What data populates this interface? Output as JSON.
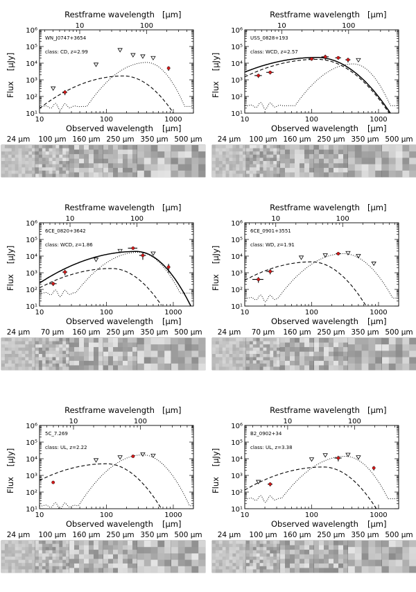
{
  "figure": {
    "xlabel": "Observed wavelength",
    "top_label": "Restframe wavelength",
    "ylabel": "Flux",
    "unit": "[μm]",
    "yunit": "[μJy]"
  },
  "chart_data": [
    {
      "type": "scatter",
      "source": "WN_J0747+3654",
      "class_label": "class: CD, z=2.99",
      "z": 2.99,
      "xlim": [
        10,
        2000
      ],
      "ylim": [
        10,
        1000000
      ],
      "top_ticks": [
        "10",
        "100"
      ],
      "x_ticks": [
        "10",
        "100",
        "1000"
      ],
      "y_ticks": [
        "10¹",
        "10²",
        "10³",
        "10⁴",
        "10⁵",
        "10⁶"
      ],
      "detections": [
        {
          "x": 24,
          "y": 180,
          "xerr": 2,
          "yerr": 60
        },
        {
          "x": 850,
          "y": 5000,
          "xerr": 0,
          "yerr": 1500
        }
      ],
      "upper_limits": [
        {
          "x": 16,
          "y": 300
        },
        {
          "x": 70,
          "y": 8000
        },
        {
          "x": 160,
          "y": 60000
        },
        {
          "x": 250,
          "y": 30000
        },
        {
          "x": 350,
          "y": 25000
        },
        {
          "x": 500,
          "y": 20000
        }
      ],
      "series": [
        {
          "name": "AGN",
          "style": "dashed",
          "peak_x": 180,
          "peak_y": 1700,
          "w1": 0.9,
          "w2": 0.5
        },
        {
          "name": "starburst",
          "style": "dotted",
          "peak_x": 400,
          "peak_y": 11000,
          "w1": 0.55,
          "w2": 0.35,
          "floor_to": 25
        }
      ],
      "cutouts": [
        "24 μm",
        "100 μm",
        "160 μm",
        "250 μm",
        "350 μm",
        "500 μm"
      ]
    },
    {
      "type": "scatter",
      "source": "USS_0828+193",
      "class_label": "class: WCD, z=2.57",
      "z": 2.57,
      "xlim": [
        10,
        2000
      ],
      "ylim": [
        10,
        1000000
      ],
      "top_ticks": [
        "10",
        "100"
      ],
      "x_ticks": [
        "10",
        "100",
        "1000"
      ],
      "y_ticks": [
        "10¹",
        "10²",
        "10³",
        "10⁴",
        "10⁵",
        "10⁶"
      ],
      "detections": [
        {
          "x": 16,
          "y": 1800,
          "xerr": 2,
          "yerr": 500
        },
        {
          "x": 24,
          "y": 2800,
          "xerr": 3,
          "yerr": 700
        },
        {
          "x": 100,
          "y": 18000,
          "xerr": 10,
          "yerr": 4000
        },
        {
          "x": 160,
          "y": 24000,
          "xerr": 20,
          "yerr": 8000
        },
        {
          "x": 250,
          "y": 21000,
          "xerr": 25,
          "yerr": 5000
        },
        {
          "x": 350,
          "y": 16000,
          "xerr": 30,
          "yerr": 5000
        }
      ],
      "upper_limits": [
        {
          "x": 500,
          "y": 15000
        }
      ],
      "series": [
        {
          "name": "total",
          "style": "solid",
          "peak_x": 120,
          "peak_y": 22000,
          "w1": 1.15,
          "w2": 0.6
        },
        {
          "name": "AGN",
          "style": "dashed",
          "peak_x": 120,
          "peak_y": 17000,
          "w1": 1.05,
          "w2": 0.6
        },
        {
          "name": "starburst",
          "style": "dotted",
          "peak_x": 420,
          "peak_y": 9000,
          "w1": 0.55,
          "w2": 0.35,
          "floor_to": 28
        }
      ],
      "cutouts": [
        "24 μm",
        "100 μm",
        "160 μm",
        "250 μm",
        "350 μm",
        "500 μm"
      ]
    },
    {
      "type": "scatter",
      "source": "6CE_0820+3642",
      "class_label": "class: WCD, z=1.86",
      "z": 1.86,
      "xlim": [
        10,
        2000
      ],
      "ylim": [
        10,
        1000000
      ],
      "top_ticks": [
        "10",
        "100"
      ],
      "x_ticks": [
        "10",
        "100",
        "1000"
      ],
      "y_ticks": [
        "10¹",
        "10²",
        "10³",
        "10⁴",
        "10⁵",
        "10⁶"
      ],
      "detections": [
        {
          "x": 16,
          "y": 220,
          "xerr": 2,
          "yerr": 60
        },
        {
          "x": 24,
          "y": 1100,
          "xerr": 2,
          "yerr": 400
        },
        {
          "x": 250,
          "y": 30000,
          "xerr": 40,
          "yerr": 6000
        },
        {
          "x": 350,
          "y": 11000,
          "xerr": 40,
          "yerr": 5000
        },
        {
          "x": 850,
          "y": 2200,
          "xerr": 0,
          "yerr": 1200
        }
      ],
      "upper_limits": [
        {
          "x": 70,
          "y": 6000
        },
        {
          "x": 160,
          "y": 20000
        },
        {
          "x": 500,
          "y": 14000
        }
      ],
      "series": [
        {
          "name": "total",
          "style": "solid",
          "peak_x": 280,
          "peak_y": 19000,
          "w1": 1.05,
          "w2": 0.45
        },
        {
          "name": "AGN",
          "style": "dashed",
          "peak_x": 120,
          "peak_y": 1800,
          "w1": 1.0,
          "w2": 0.5
        },
        {
          "name": "starburst",
          "style": "dotted",
          "peak_x": 300,
          "peak_y": 17000,
          "w1": 0.6,
          "w2": 0.4,
          "floor_to": 60
        }
      ],
      "cutouts": [
        "24 μm",
        "70 μm",
        "160 μm",
        "250 μm",
        "350 μm",
        "500 μm"
      ]
    },
    {
      "type": "scatter",
      "source": "6CE_0901+3551",
      "class_label": "class: WD, z=1.91",
      "z": 1.91,
      "xlim": [
        10,
        2000
      ],
      "ylim": [
        10,
        1000000
      ],
      "top_ticks": [
        "10",
        "100"
      ],
      "x_ticks": [
        "10",
        "100",
        "1000"
      ],
      "y_ticks": [
        "10¹",
        "10²",
        "10³",
        "10⁴",
        "10⁵",
        "10⁶"
      ],
      "detections": [
        {
          "x": 16,
          "y": 400,
          "xerr": 3,
          "yerr": 150
        },
        {
          "x": 24,
          "y": 1200,
          "xerr": 3,
          "yerr": 400
        },
        {
          "x": 250,
          "y": 14000,
          "xerr": 20,
          "yerr": 3000
        }
      ],
      "upper_limits": [
        {
          "x": 70,
          "y": 8000
        },
        {
          "x": 160,
          "y": 11000
        },
        {
          "x": 350,
          "y": 15000
        },
        {
          "x": 500,
          "y": 10000
        },
        {
          "x": 850,
          "y": 3500
        }
      ],
      "series": [
        {
          "name": "AGN",
          "style": "dashed",
          "peak_x": 100,
          "peak_y": 4500,
          "w1": 0.95,
          "w2": 0.5
        },
        {
          "name": "starburst",
          "style": "dotted",
          "peak_x": 300,
          "peak_y": 14000,
          "w1": 0.6,
          "w2": 0.45,
          "floor_to": 30
        }
      ],
      "cutouts": [
        "24 μm",
        "70 μm",
        "160 μm",
        "250 μm",
        "350 μm",
        "500 μm"
      ]
    },
    {
      "type": "scatter",
      "source": "5C_7.269",
      "class_label": "class: UL, z=2.22",
      "z": 2.22,
      "xlim": [
        10,
        2000
      ],
      "ylim": [
        10,
        1000000
      ],
      "top_ticks": [
        "10",
        "100"
      ],
      "x_ticks": [
        "10",
        "100",
        "1000"
      ],
      "y_ticks": [
        "10¹",
        "10²",
        "10³",
        "10⁴",
        "10⁵",
        "10⁶"
      ],
      "detections": [
        {
          "x": 16,
          "y": 380,
          "xerr": 0,
          "yerr": 60
        },
        {
          "x": 250,
          "y": 14000,
          "xerr": 0,
          "yerr": 2000
        }
      ],
      "upper_limits": [
        {
          "x": 70,
          "y": 8000
        },
        {
          "x": 160,
          "y": 12000
        },
        {
          "x": 350,
          "y": 18000
        },
        {
          "x": 500,
          "y": 15000
        }
      ],
      "series": [
        {
          "name": "AGN",
          "style": "dashed",
          "peak_x": 100,
          "peak_y": 5000,
          "w1": 1.0,
          "w2": 0.5
        },
        {
          "name": "starburst",
          "style": "dotted",
          "peak_x": 350,
          "peak_y": 17000,
          "w1": 0.55,
          "w2": 0.4,
          "floor_to": 15
        }
      ],
      "cutouts": [
        "24 μm",
        "100 μm",
        "160 μm",
        "250 μm",
        "350 μm",
        "500 μm"
      ]
    },
    {
      "type": "scatter",
      "source": "B2_0902+34",
      "class_label": "class: UL, z=3.38",
      "z": 3.38,
      "xlim": [
        10,
        2000
      ],
      "ylim": [
        10,
        1000000
      ],
      "top_ticks": [
        "10",
        "100"
      ],
      "x_ticks": [
        "10",
        "100",
        "1000"
      ],
      "y_ticks": [
        "10¹",
        "10²",
        "10³",
        "10⁴",
        "10⁵",
        "10⁶"
      ],
      "detections": [
        {
          "x": 24,
          "y": 300,
          "xerr": 2,
          "yerr": 80
        },
        {
          "x": 250,
          "y": 11000,
          "xerr": 30,
          "yerr": 4000
        },
        {
          "x": 850,
          "y": 2800,
          "xerr": 0,
          "yerr": 800
        }
      ],
      "upper_limits": [
        {
          "x": 16,
          "y": 400
        },
        {
          "x": 100,
          "y": 9000
        },
        {
          "x": 160,
          "y": 16000
        },
        {
          "x": 350,
          "y": 17000
        },
        {
          "x": 500,
          "y": 12000
        }
      ],
      "series": [
        {
          "name": "AGN",
          "style": "dashed",
          "peak_x": 150,
          "peak_y": 3200,
          "w1": 1.0,
          "w2": 0.5
        },
        {
          "name": "starburst",
          "style": "dotted",
          "peak_x": 320,
          "peak_y": 14000,
          "w1": 0.6,
          "w2": 0.4,
          "floor_to": 40
        }
      ],
      "cutouts": [
        "24 μm",
        "100 μm",
        "160 μm",
        "250 μm",
        "350 μm",
        "500 μm"
      ]
    }
  ]
}
